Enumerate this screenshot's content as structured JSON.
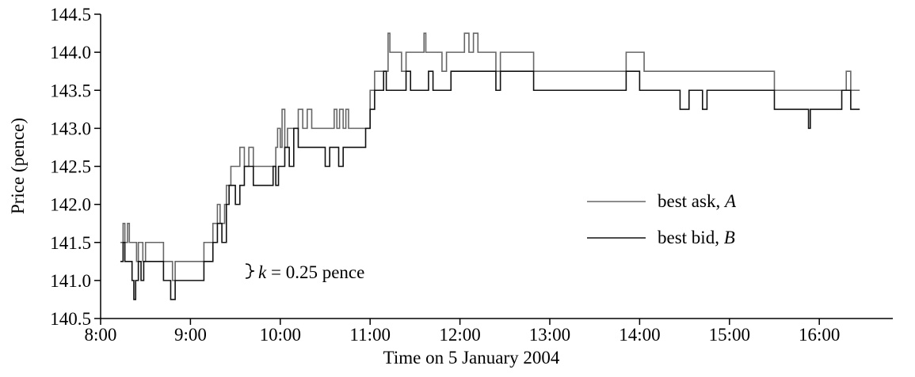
{
  "chart_data": {
    "type": "line",
    "title": "",
    "xlabel": "Time on 5 January 2004",
    "ylabel": "Price (pence)",
    "xlim": [
      8.0,
      16.8
    ],
    "ylim": [
      140.5,
      144.5
    ],
    "x_ticks": [
      {
        "v": 8,
        "label": "8:00"
      },
      {
        "v": 9,
        "label": "9:00"
      },
      {
        "v": 10,
        "label": "10:00"
      },
      {
        "v": 11,
        "label": "11:00"
      },
      {
        "v": 12,
        "label": "12:00"
      },
      {
        "v": 13,
        "label": "13:00"
      },
      {
        "v": 14,
        "label": "14:00"
      },
      {
        "v": 15,
        "label": "15:00"
      },
      {
        "v": 16,
        "label": "16:00"
      }
    ],
    "y_ticks": [
      {
        "v": 140.5,
        "label": "140.5"
      },
      {
        "v": 141.0,
        "label": "141.0"
      },
      {
        "v": 141.5,
        "label": "141.5"
      },
      {
        "v": 142.0,
        "label": "142.0"
      },
      {
        "v": 142.5,
        "label": "142.5"
      },
      {
        "v": 143.0,
        "label": "143.0"
      },
      {
        "v": 143.5,
        "label": "143.5"
      },
      {
        "v": 144.0,
        "label": "144.0"
      },
      {
        "v": 144.5,
        "label": "144.5"
      }
    ],
    "grid": false,
    "legend_position": "right",
    "legend": [
      "best ask, A",
      "best bid, B"
    ],
    "annotation": {
      "text_k": "k",
      "text_rest": " = 0.25 pence",
      "x": 9.55,
      "y": 141.19
    },
    "series": [
      {
        "name": "best ask, A",
        "color": "#666666",
        "steps": [
          [
            8.22,
            141.5
          ],
          [
            8.25,
            141.75
          ],
          [
            8.27,
            141.5
          ],
          [
            8.3,
            141.75
          ],
          [
            8.32,
            141.5
          ],
          [
            8.4,
            141.25
          ],
          [
            8.42,
            141.5
          ],
          [
            8.47,
            141.25
          ],
          [
            8.5,
            141.5
          ],
          [
            8.7,
            141.25
          ],
          [
            8.8,
            141.0
          ],
          [
            8.83,
            141.25
          ],
          [
            9.15,
            141.5
          ],
          [
            9.25,
            141.75
          ],
          [
            9.3,
            142.0
          ],
          [
            9.33,
            141.75
          ],
          [
            9.38,
            142.0
          ],
          [
            9.4,
            142.25
          ],
          [
            9.45,
            142.5
          ],
          [
            9.55,
            142.75
          ],
          [
            9.6,
            142.5
          ],
          [
            9.65,
            142.75
          ],
          [
            9.7,
            142.5
          ],
          [
            9.95,
            142.75
          ],
          [
            9.97,
            143.0
          ],
          [
            10.0,
            142.75
          ],
          [
            10.02,
            143.25
          ],
          [
            10.05,
            142.75
          ],
          [
            10.08,
            143.0
          ],
          [
            10.2,
            143.25
          ],
          [
            10.25,
            143.0
          ],
          [
            10.3,
            143.25
          ],
          [
            10.35,
            143.0
          ],
          [
            10.6,
            143.25
          ],
          [
            10.63,
            143.0
          ],
          [
            10.66,
            143.25
          ],
          [
            10.7,
            143.0
          ],
          [
            10.73,
            143.25
          ],
          [
            10.76,
            143.0
          ],
          [
            11.0,
            143.5
          ],
          [
            11.05,
            143.75
          ],
          [
            11.2,
            144.25
          ],
          [
            11.22,
            144.0
          ],
          [
            11.35,
            143.75
          ],
          [
            11.4,
            144.0
          ],
          [
            11.6,
            144.25
          ],
          [
            11.62,
            144.0
          ],
          [
            11.8,
            143.75
          ],
          [
            11.85,
            144.0
          ],
          [
            12.05,
            144.25
          ],
          [
            12.1,
            144.0
          ],
          [
            12.15,
            144.25
          ],
          [
            12.2,
            144.0
          ],
          [
            12.4,
            143.75
          ],
          [
            12.45,
            144.0
          ],
          [
            12.75,
            144.0
          ],
          [
            12.82,
            143.75
          ],
          [
            13.85,
            144.0
          ],
          [
            14.05,
            143.75
          ],
          [
            14.7,
            143.75
          ],
          [
            15.5,
            143.5
          ],
          [
            16.3,
            143.75
          ],
          [
            16.35,
            143.5
          ],
          [
            16.45,
            143.5
          ]
        ]
      },
      {
        "name": "best bid, B",
        "color": "#111111",
        "steps": [
          [
            8.22,
            141.25
          ],
          [
            8.25,
            141.5
          ],
          [
            8.27,
            141.25
          ],
          [
            8.35,
            141.0
          ],
          [
            8.37,
            140.75
          ],
          [
            8.39,
            141.0
          ],
          [
            8.42,
            141.25
          ],
          [
            8.45,
            141.0
          ],
          [
            8.48,
            141.25
          ],
          [
            8.7,
            141.0
          ],
          [
            8.78,
            140.75
          ],
          [
            8.83,
            141.0
          ],
          [
            9.15,
            141.25
          ],
          [
            9.25,
            141.5
          ],
          [
            9.3,
            141.75
          ],
          [
            9.35,
            141.5
          ],
          [
            9.4,
            142.0
          ],
          [
            9.43,
            142.25
          ],
          [
            9.5,
            142.0
          ],
          [
            9.55,
            142.25
          ],
          [
            9.6,
            142.5
          ],
          [
            9.7,
            142.25
          ],
          [
            9.92,
            142.5
          ],
          [
            9.95,
            142.25
          ],
          [
            9.98,
            142.5
          ],
          [
            10.05,
            142.75
          ],
          [
            10.1,
            142.5
          ],
          [
            10.15,
            143.0
          ],
          [
            10.2,
            142.75
          ],
          [
            10.5,
            142.5
          ],
          [
            10.55,
            142.75
          ],
          [
            10.65,
            142.5
          ],
          [
            10.7,
            142.75
          ],
          [
            10.95,
            143.0
          ],
          [
            11.0,
            143.25
          ],
          [
            11.05,
            143.5
          ],
          [
            11.15,
            143.75
          ],
          [
            11.18,
            143.5
          ],
          [
            11.4,
            143.75
          ],
          [
            11.45,
            143.5
          ],
          [
            11.65,
            143.75
          ],
          [
            11.7,
            143.5
          ],
          [
            11.9,
            143.75
          ],
          [
            12.4,
            143.5
          ],
          [
            12.45,
            143.75
          ],
          [
            12.75,
            143.75
          ],
          [
            12.82,
            143.5
          ],
          [
            13.85,
            143.75
          ],
          [
            14.0,
            143.5
          ],
          [
            14.45,
            143.25
          ],
          [
            14.55,
            143.5
          ],
          [
            14.7,
            143.25
          ],
          [
            14.75,
            143.5
          ],
          [
            15.5,
            143.25
          ],
          [
            15.88,
            143.0
          ],
          [
            15.9,
            143.25
          ],
          [
            16.25,
            143.5
          ],
          [
            16.35,
            143.25
          ],
          [
            16.45,
            143.25
          ]
        ]
      }
    ]
  }
}
